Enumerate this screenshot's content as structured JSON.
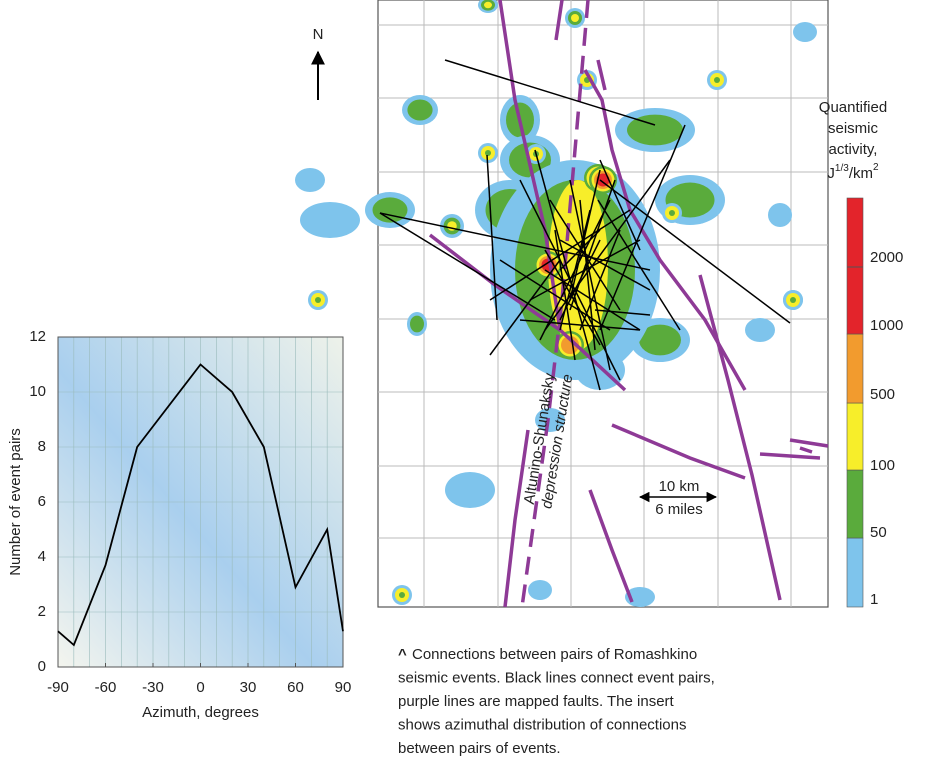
{
  "chart_data": {
    "type": "line",
    "x": [
      -90,
      -80,
      -60,
      -40,
      0,
      20,
      40,
      60,
      80,
      90
    ],
    "values": [
      1.3,
      0.8,
      3.7,
      8,
      11,
      10,
      8,
      2.9,
      5,
      1.3
    ],
    "color": "#000000",
    "xlim": [
      -90,
      90
    ],
    "xticks": [
      -90,
      -60,
      -30,
      0,
      30,
      60,
      90
    ],
    "ylim": [
      0,
      12
    ],
    "yticks": [
      0,
      2,
      4,
      6,
      8,
      10,
      12
    ],
    "xlabel": "Azimuth, degrees",
    "ylabel": "Number of event pairs",
    "grid": true
  },
  "map": {
    "north": "N",
    "scale": [
      "10 km",
      "6 miles"
    ],
    "structure_label": [
      "Altunino-Shunaksky",
      "depression structure"
    ]
  },
  "legend": {
    "title": [
      "Quantified",
      "seismic",
      "activity,"
    ],
    "unit": [
      "J",
      "1/3",
      "/km",
      "2"
    ],
    "levels": [
      {
        "label": "1",
        "color": "#7ec4ec"
      },
      {
        "label": "50",
        "color": "#5aab3c"
      },
      {
        "label": "100",
        "color": "#f7ee2a"
      },
      {
        "label": "500",
        "color": "#f29b2e"
      },
      {
        "label": "1000",
        "color": "#e3242b"
      },
      {
        "label": "2000",
        "color": "#e3242b"
      }
    ]
  },
  "caption": {
    "marker": "^",
    "lines": [
      "Connections between pairs of Romashkino",
      "seismic events. Black lines connect event pairs,",
      "purple lines are mapped faults. The insert",
      "shows azimuthal distribution of connections",
      "between pairs of events."
    ]
  }
}
